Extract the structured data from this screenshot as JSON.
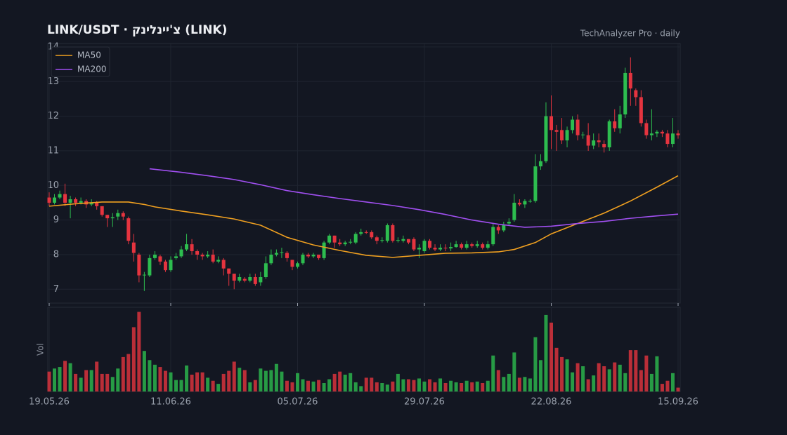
{
  "chart_data": {
    "type": "candlestick",
    "title": "LINK/USDT · צ'יינלינק (LINK)",
    "subtitle": "TechAnalyzer Pro · daily",
    "volume_label": "Vol",
    "up_color": "#2dbd4f",
    "down_color": "#e5343f",
    "grid": true,
    "legend": "upper left",
    "ylim": [
      6.6,
      14.1
    ],
    "yticks": [
      7,
      8,
      9,
      10,
      11,
      12,
      13,
      14
    ],
    "volume_ylim": [
      0,
      110
    ],
    "xticks": [
      "19.05.26",
      "11.06.26",
      "05.07.26",
      "29.07.26",
      "22.08.26",
      "15.09.26"
    ],
    "categories": [
      "19.05.26",
      "20.05.26",
      "21.05.26",
      "22.05.26",
      "23.05.26",
      "24.05.26",
      "25.05.26",
      "26.05.26",
      "27.05.26",
      "28.05.26",
      "29.05.26",
      "30.05.26",
      "31.05.26",
      "01.06.26",
      "02.06.26",
      "03.06.26",
      "04.06.26",
      "05.06.26",
      "06.06.26",
      "07.06.26",
      "08.06.26",
      "09.06.26",
      "10.06.26",
      "11.06.26",
      "12.06.26",
      "13.06.26",
      "14.06.26",
      "15.06.26",
      "16.06.26",
      "17.06.26",
      "18.06.26",
      "19.06.26",
      "20.06.26",
      "21.06.26",
      "22.06.26",
      "23.06.26",
      "24.06.26",
      "25.06.26",
      "26.06.26",
      "27.06.26",
      "28.06.26",
      "29.06.26",
      "30.06.26",
      "01.07.26",
      "02.07.26",
      "03.07.26",
      "04.07.26",
      "05.07.26",
      "06.07.26",
      "07.07.26",
      "08.07.26",
      "09.07.26",
      "10.07.26",
      "11.07.26",
      "12.07.26",
      "13.07.26",
      "14.07.26",
      "15.07.26",
      "16.07.26",
      "17.07.26",
      "18.07.26",
      "19.07.26",
      "20.07.26",
      "21.07.26",
      "22.07.26",
      "23.07.26",
      "24.07.26",
      "25.07.26",
      "26.07.26",
      "27.07.26",
      "28.07.26",
      "29.07.26",
      "30.07.26",
      "31.07.26",
      "01.08.26",
      "02.08.26",
      "03.08.26",
      "04.08.26",
      "05.08.26",
      "06.08.26",
      "07.08.26",
      "08.08.26",
      "09.08.26",
      "10.08.26",
      "11.08.26",
      "12.08.26",
      "13.08.26",
      "14.08.26",
      "15.08.26",
      "16.08.26",
      "17.08.26",
      "18.08.26",
      "19.08.26",
      "20.08.26",
      "21.08.26",
      "22.08.26",
      "23.08.26",
      "24.08.26",
      "25.08.26",
      "26.08.26",
      "27.08.26",
      "28.08.26",
      "29.08.26",
      "30.08.26",
      "31.08.26",
      "01.09.26",
      "02.09.26",
      "03.09.26",
      "04.09.26",
      "05.09.26",
      "06.09.26",
      "07.09.26",
      "08.09.26",
      "09.09.26",
      "10.09.26",
      "11.09.26",
      "12.09.26",
      "13.09.26",
      "14.09.26",
      "15.09.26"
    ],
    "open": [
      9.65,
      9.5,
      9.65,
      9.75,
      9.5,
      9.6,
      9.5,
      9.55,
      9.45,
      9.5,
      9.4,
      9.15,
      9.05,
      9.1,
      9.2,
      9.05,
      8.35,
      8.0,
      7.4,
      7.4,
      7.9,
      7.95,
      7.8,
      7.55,
      7.9,
      7.95,
      8.15,
      8.3,
      8.1,
      8.0,
      7.95,
      8.0,
      7.8,
      7.85,
      7.6,
      7.45,
      7.25,
      7.3,
      7.25,
      7.35,
      7.2,
      7.35,
      7.75,
      8.0,
      8.05,
      8.05,
      7.85,
      7.65,
      7.75,
      8.0,
      7.95,
      8.0,
      7.9,
      8.35,
      8.55,
      8.35,
      8.3,
      8.35,
      8.35,
      8.6,
      8.65,
      8.65,
      8.5,
      8.4,
      8.4,
      8.85,
      8.4,
      8.4,
      8.45,
      8.45,
      8.15,
      8.1,
      8.4,
      8.2,
      8.15,
      8.2,
      8.18,
      8.22,
      8.3,
      8.2,
      8.3,
      8.25,
      8.3,
      8.2,
      8.3,
      8.8,
      8.7,
      8.9,
      9.0,
      9.5,
      9.45,
      9.55,
      9.55,
      10.55,
      10.7,
      12.0,
      11.6,
      11.6,
      11.3,
      11.6,
      11.9,
      11.45,
      11.45,
      11.15,
      11.3,
      11.2,
      11.1,
      11.85,
      11.65,
      12.05,
      13.25,
      12.75,
      12.55,
      11.8,
      11.45,
      11.5,
      11.55,
      11.5,
      11.2,
      11.5
    ],
    "high": [
      9.8,
      9.75,
      9.85,
      10.05,
      9.7,
      9.65,
      9.65,
      9.6,
      9.6,
      9.55,
      9.4,
      9.15,
      9.2,
      9.3,
      9.25,
      9.1,
      8.6,
      8.05,
      7.5,
      8.0,
      8.1,
      8.0,
      7.85,
      7.95,
      8.05,
      8.25,
      8.6,
      8.45,
      8.15,
      8.05,
      8.1,
      8.15,
      7.95,
      7.9,
      7.6,
      7.45,
      7.45,
      7.35,
      7.45,
      7.45,
      7.5,
      7.95,
      8.15,
      8.15,
      8.2,
      8.1,
      7.85,
      7.8,
      8.05,
      8.05,
      8.05,
      8.0,
      8.4,
      8.6,
      8.55,
      8.45,
      8.4,
      8.45,
      8.65,
      8.75,
      8.7,
      8.7,
      8.55,
      8.5,
      8.9,
      8.9,
      8.5,
      8.55,
      8.45,
      8.5,
      8.3,
      8.45,
      8.45,
      8.3,
      8.3,
      8.3,
      8.35,
      8.4,
      8.35,
      8.4,
      8.35,
      8.4,
      8.35,
      8.4,
      8.9,
      8.85,
      8.95,
      9.05,
      9.75,
      9.6,
      9.6,
      9.6,
      10.9,
      10.9,
      12.4,
      12.6,
      11.75,
      11.95,
      11.7,
      12.0,
      12.05,
      11.55,
      11.8,
      11.5,
      11.5,
      11.3,
      11.9,
      12.2,
      12.3,
      13.4,
      13.7,
      12.8,
      12.75,
      11.9,
      12.2,
      11.6,
      11.6,
      11.6,
      11.95,
      11.6
    ],
    "low": [
      9.4,
      9.45,
      9.6,
      9.4,
      9.05,
      9.4,
      9.45,
      9.35,
      9.4,
      9.3,
      9.1,
      8.8,
      8.8,
      9.0,
      9.0,
      8.3,
      7.8,
      7.2,
      6.95,
      7.35,
      7.85,
      7.7,
      7.5,
      7.5,
      7.85,
      7.9,
      8.1,
      8.0,
      7.85,
      7.85,
      7.9,
      7.75,
      7.75,
      7.4,
      7.1,
      7.0,
      7.2,
      7.2,
      7.2,
      7.1,
      7.1,
      7.3,
      7.7,
      7.95,
      7.9,
      7.8,
      7.55,
      7.6,
      7.7,
      7.9,
      7.9,
      7.85,
      7.85,
      8.3,
      8.2,
      8.25,
      8.25,
      8.3,
      8.3,
      8.55,
      8.6,
      8.45,
      8.3,
      8.35,
      8.35,
      8.35,
      8.35,
      8.35,
      8.3,
      8.1,
      7.9,
      8.05,
      8.15,
      8.1,
      8.1,
      8.1,
      8.1,
      8.2,
      8.15,
      8.15,
      8.2,
      8.2,
      8.15,
      8.15,
      8.25,
      8.6,
      8.65,
      8.85,
      8.95,
      9.4,
      9.35,
      9.5,
      9.5,
      10.45,
      10.65,
      11.05,
      11.0,
      11.2,
      11.1,
      11.5,
      11.3,
      11.35,
      11.0,
      11.05,
      11.1,
      10.95,
      11.0,
      11.55,
      11.5,
      11.95,
      12.3,
      12.3,
      11.7,
      11.35,
      11.3,
      11.4,
      11.4,
      11.1,
      11.1,
      11.35
    ],
    "close": [
      9.5,
      9.65,
      9.75,
      9.5,
      9.6,
      9.5,
      9.55,
      9.45,
      9.5,
      9.4,
      9.15,
      9.05,
      9.08,
      9.2,
      9.1,
      8.4,
      8.05,
      7.4,
      7.42,
      7.9,
      8.0,
      7.8,
      7.55,
      7.85,
      7.95,
      8.15,
      8.3,
      8.1,
      8.0,
      7.95,
      8.0,
      7.8,
      7.85,
      7.6,
      7.45,
      7.25,
      7.35,
      7.25,
      7.35,
      7.15,
      7.35,
      7.75,
      8.0,
      8.05,
      8.07,
      7.9,
      7.65,
      7.75,
      8.0,
      7.95,
      8.0,
      7.9,
      8.35,
      8.55,
      8.35,
      8.3,
      8.35,
      8.37,
      8.6,
      8.65,
      8.63,
      8.5,
      8.4,
      8.42,
      8.85,
      8.4,
      8.42,
      8.45,
      8.35,
      8.15,
      8.2,
      8.4,
      8.2,
      8.15,
      8.2,
      8.18,
      8.22,
      8.3,
      8.2,
      8.3,
      8.25,
      8.3,
      8.2,
      8.3,
      8.8,
      8.7,
      8.85,
      8.95,
      9.5,
      9.45,
      9.55,
      9.55,
      10.55,
      10.7,
      12.0,
      11.6,
      11.55,
      11.3,
      11.6,
      11.9,
      11.45,
      11.47,
      11.15,
      11.3,
      11.25,
      11.1,
      11.85,
      11.65,
      12.05,
      13.25,
      12.8,
      12.55,
      11.8,
      11.45,
      11.5,
      11.55,
      11.5,
      11.2,
      11.5,
      11.45
    ],
    "volume": [
      26,
      30,
      32,
      40,
      37,
      23,
      18,
      28,
      28,
      39,
      23,
      23,
      19,
      30,
      45,
      49,
      84,
      104,
      53,
      41,
      35,
      32,
      27,
      25,
      15,
      15,
      34,
      22,
      25,
      25,
      18,
      14,
      10,
      23,
      27,
      39,
      31,
      28,
      12,
      15,
      30,
      27,
      28,
      36,
      26,
      14,
      12,
      24,
      16,
      14,
      13,
      15,
      11,
      16,
      23,
      26,
      22,
      24,
      12,
      7,
      18,
      18,
      12,
      11,
      9,
      13,
      23,
      16,
      16,
      15,
      17,
      13,
      16,
      12,
      17,
      11,
      14,
      12,
      11,
      14,
      12,
      13,
      11,
      14,
      47,
      28,
      19,
      23,
      51,
      18,
      19,
      17,
      71,
      41,
      100,
      90,
      57,
      45,
      42,
      25,
      37,
      33,
      16,
      21,
      37,
      33,
      29,
      38,
      35,
      24,
      54,
      54,
      28,
      47,
      23,
      46,
      10,
      14,
      24,
      5
    ],
    "series": [
      {
        "name": "MA50",
        "color": "#f0a020",
        "x": [
          "19.05.26",
          "24.05.26",
          "29.05.26",
          "03.06.26",
          "06.06.26",
          "08.06.26",
          "13.06.26",
          "18.06.26",
          "23.06.26",
          "28.06.26",
          "03.07.26",
          "08.07.26",
          "13.07.26",
          "18.07.26",
          "23.07.26",
          "28.07.26",
          "02.08.26",
          "07.08.26",
          "12.08.26",
          "15.08.26",
          "19.08.26",
          "22.08.26",
          "27.08.26",
          "01.09.26",
          "06.09.26",
          "11.09.26",
          "15.09.26"
        ],
        "values": [
          9.4,
          9.47,
          9.52,
          9.52,
          9.45,
          9.38,
          9.26,
          9.15,
          9.03,
          8.85,
          8.5,
          8.28,
          8.12,
          7.98,
          7.92,
          7.98,
          8.04,
          8.05,
          8.08,
          8.15,
          8.35,
          8.6,
          8.9,
          9.2,
          9.55,
          9.95,
          10.28
        ]
      },
      {
        "name": "MA200",
        "color": "#a04ff0",
        "x": [
          "07.06.26",
          "13.06.26",
          "18.06.26",
          "23.06.26",
          "28.06.26",
          "03.07.26",
          "08.07.26",
          "13.07.26",
          "18.07.26",
          "23.07.26",
          "28.07.26",
          "02.08.26",
          "07.08.26",
          "12.08.26",
          "17.08.26",
          "22.08.26",
          "27.08.26",
          "01.09.26",
          "06.09.26",
          "11.09.26",
          "15.09.26"
        ],
        "values": [
          10.48,
          10.38,
          10.28,
          10.17,
          10.02,
          9.85,
          9.73,
          9.62,
          9.52,
          9.42,
          9.3,
          9.16,
          9.0,
          8.88,
          8.79,
          8.82,
          8.9,
          8.96,
          9.05,
          9.12,
          9.17
        ]
      }
    ]
  }
}
